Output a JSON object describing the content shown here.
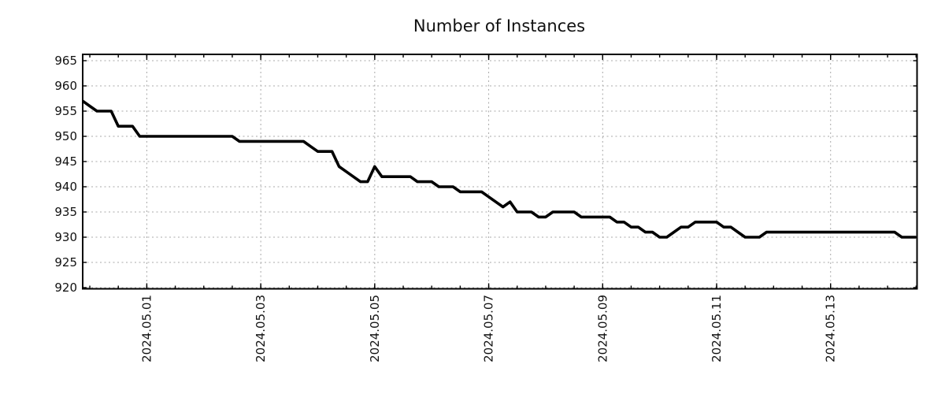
{
  "title": "Number of Instances",
  "colors": {
    "line": "#000000",
    "grid": "#a8a8a8",
    "axis": "#000000",
    "text": "#111111",
    "background": "#ffffff"
  },
  "chart_data": {
    "type": "line",
    "title": "Number of Instances",
    "xlabel": "",
    "ylabel": "",
    "legend": false,
    "grid": true,
    "x_start": "2024.04.29 21:00",
    "x_interval_hours": 3,
    "ylim": [
      919.8,
      966.9
    ],
    "y_ticks": [
      920,
      925,
      930,
      935,
      940,
      945,
      950,
      955,
      960,
      965
    ],
    "x_major_ticks": [
      {
        "i": 9,
        "label": "2024.05.01"
      },
      {
        "i": 25,
        "label": "2024.05.03"
      },
      {
        "i": 41,
        "label": "2024.05.05"
      },
      {
        "i": 57,
        "label": "2024.05.07"
      },
      {
        "i": 73,
        "label": "2024.05.09"
      },
      {
        "i": 89,
        "label": "2024.05.11"
      },
      {
        "i": 105,
        "label": "2024.05.13"
      }
    ],
    "x_minor_tick_start": 1,
    "x_minor_tick_step": 4,
    "values": [
      957,
      956,
      955,
      955,
      955,
      952,
      952,
      952,
      950,
      950,
      950,
      950,
      950,
      950,
      950,
      950,
      950,
      950,
      950,
      950,
      950,
      950,
      949,
      949,
      949,
      949,
      949,
      949,
      949,
      949,
      949,
      949,
      948,
      947,
      947,
      947,
      944,
      943,
      942,
      941,
      941,
      944,
      942,
      942,
      942,
      942,
      942,
      941,
      941,
      941,
      940,
      940,
      940,
      939,
      939,
      939,
      939,
      938,
      937,
      936,
      937,
      935,
      935,
      935,
      934,
      934,
      935,
      935,
      935,
      935,
      934,
      934,
      934,
      934,
      934,
      933,
      933,
      932,
      932,
      931,
      931,
      930,
      930,
      931,
      932,
      932,
      933,
      933,
      933,
      933,
      932,
      932,
      931,
      930,
      930,
      930,
      931,
      931,
      931,
      931,
      931,
      931,
      931,
      931,
      931,
      931,
      931,
      931,
      931,
      931,
      931,
      931,
      931,
      931,
      931,
      930,
      930,
      930
    ]
  }
}
